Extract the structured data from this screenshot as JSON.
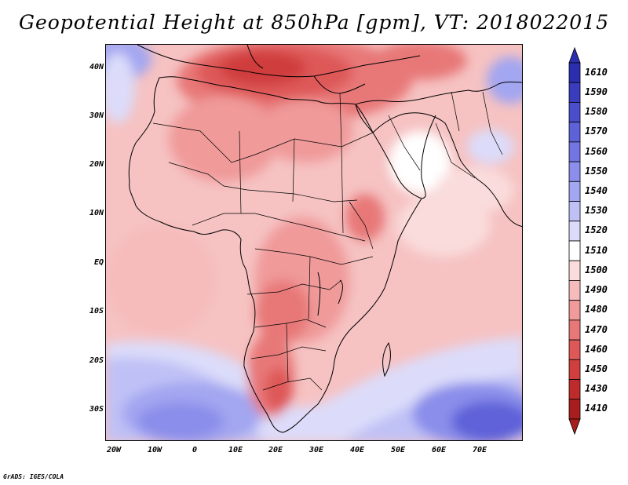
{
  "title": "Geopotential Height at 850hPa [gpm], VT: 2018022015",
  "credit": "GrADS: IGES/COLA",
  "axes": {
    "lat_labels": [
      "40N",
      "30N",
      "20N",
      "10N",
      "EQ",
      "10S",
      "20S",
      "30S"
    ],
    "lon_labels": [
      "20W",
      "10W",
      "0",
      "10E",
      "20E",
      "30E",
      "40E",
      "50E",
      "60E",
      "70E"
    ]
  },
  "colorbar": {
    "labels": [
      "1610",
      "1590",
      "1580",
      "1570",
      "1560",
      "1550",
      "1540",
      "1530",
      "1520",
      "1510",
      "1500",
      "1490",
      "1480",
      "1470",
      "1460",
      "1450",
      "1430",
      "1410"
    ],
    "colors": [
      "#2c2eb0",
      "#3a3cbe",
      "#4a4dcc",
      "#5e62d8",
      "#7376e2",
      "#8b8eea",
      "#a3a6f0",
      "#bfc1f6",
      "#dcdcfa",
      "#ffffff",
      "#fadcdc",
      "#f6bcbc",
      "#f09a9a",
      "#e87878",
      "#de5858",
      "#d03e3e",
      "#bf2a2a",
      "#a81e1e"
    ]
  }
}
